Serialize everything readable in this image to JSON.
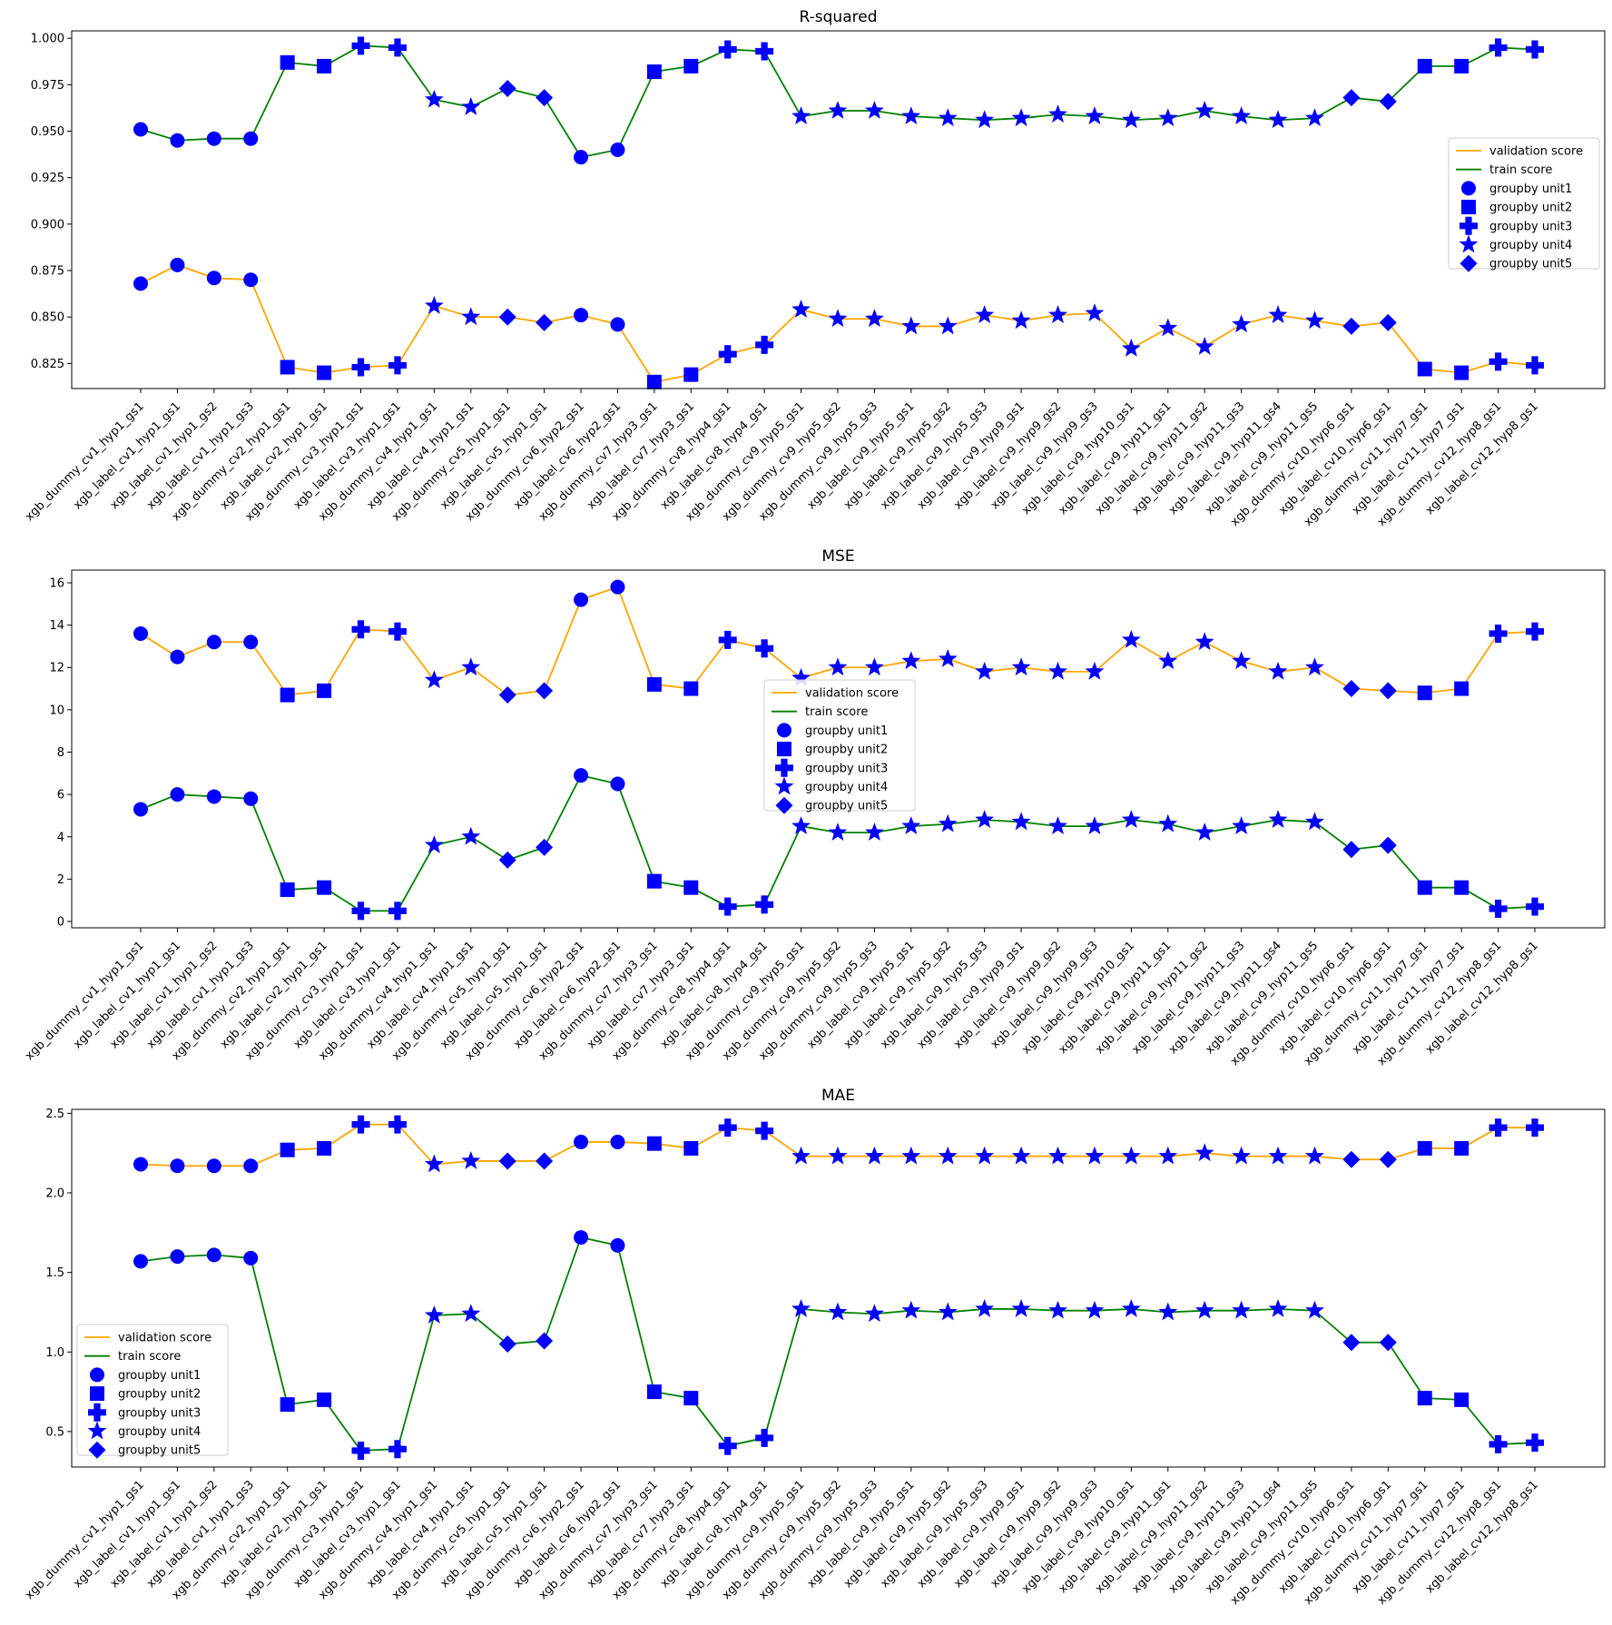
{
  "chart_data": [
    {
      "type": "line",
      "title": "R-squared",
      "categories": [
        "xgb_dummy_cv1_hyp1_gs1",
        "xgb_label_cv1_hyp1_gs1",
        "xgb_label_cv1_hyp1_gs2",
        "xgb_label_cv1_hyp1_gs3",
        "xgb_dummy_cv2_hyp1_gs1",
        "xgb_label_cv2_hyp1_gs1",
        "xgb_dummy_cv3_hyp1_gs1",
        "xgb_label_cv3_hyp1_gs1",
        "xgb_dummy_cv4_hyp1_gs1",
        "xgb_label_cv4_hyp1_gs1",
        "xgb_dummy_cv5_hyp1_gs1",
        "xgb_label_cv5_hyp1_gs1",
        "xgb_dummy_cv6_hyp2_gs1",
        "xgb_label_cv6_hyp2_gs1",
        "xgb_dummy_cv7_hyp3_gs1",
        "xgb_label_cv7_hyp3_gs1",
        "xgb_dummy_cv8_hyp4_gs1",
        "xgb_label_cv8_hyp4_gs1",
        "xgb_dummy_cv9_hyp5_gs1",
        "xgb_dummy_cv9_hyp5_gs2",
        "xgb_dummy_cv9_hyp5_gs3",
        "xgb_label_cv9_hyp5_gs1",
        "xgb_label_cv9_hyp5_gs2",
        "xgb_label_cv9_hyp5_gs3",
        "xgb_label_cv9_hyp9_gs1",
        "xgb_label_cv9_hyp9_gs2",
        "xgb_label_cv9_hyp9_gs3",
        "xgb_label_cv9_hyp10_gs1",
        "xgb_label_cv9_hyp11_gs1",
        "xgb_label_cv9_hyp11_gs2",
        "xgb_label_cv9_hyp11_gs3",
        "xgb_label_cv9_hyp11_gs4",
        "xgb_label_cv9_hyp11_gs5",
        "xgb_dummy_cv10_hyp6_gs1",
        "xgb_label_cv10_hyp6_gs1",
        "xgb_dummy_cv11_hyp7_gs1",
        "xgb_label_cv11_hyp7_gs1",
        "xgb_dummy_cv12_hyp8_gs1",
        "xgb_label_cv12_hyp8_gs1"
      ],
      "groups": [
        1,
        1,
        1,
        1,
        2,
        2,
        3,
        3,
        4,
        4,
        5,
        5,
        1,
        1,
        2,
        2,
        3,
        3,
        4,
        4,
        4,
        4,
        4,
        4,
        4,
        4,
        4,
        4,
        4,
        4,
        4,
        4,
        4,
        5,
        5,
        2,
        2,
        3,
        3
      ],
      "series": [
        {
          "name": "validation score",
          "color": "#ffa500",
          "values": [
            0.868,
            0.878,
            0.871,
            0.87,
            0.823,
            0.82,
            0.823,
            0.824,
            0.856,
            0.85,
            0.85,
            0.847,
            0.851,
            0.846,
            0.815,
            0.819,
            0.83,
            0.835,
            0.854,
            0.849,
            0.849,
            0.845,
            0.845,
            0.851,
            0.848,
            0.851,
            0.852,
            0.833,
            0.844,
            0.834,
            0.846,
            0.851,
            0.848,
            0.845,
            0.847,
            0.822,
            0.82,
            0.826,
            0.824
          ]
        },
        {
          "name": "train score",
          "color": "#008000",
          "values": [
            0.951,
            0.945,
            0.946,
            0.946,
            0.987,
            0.985,
            0.996,
            0.995,
            0.967,
            0.963,
            0.973,
            0.968,
            0.936,
            0.94,
            0.982,
            0.985,
            0.994,
            0.993,
            0.958,
            0.961,
            0.961,
            0.958,
            0.957,
            0.956,
            0.957,
            0.959,
            0.958,
            0.956,
            0.957,
            0.961,
            0.958,
            0.956,
            0.957,
            0.968,
            0.966,
            0.985,
            0.985,
            0.995,
            0.994
          ]
        }
      ],
      "ylim": [
        0.8115,
        1.004
      ],
      "yticks": [
        "0.825",
        "0.850",
        "0.875",
        "0.900",
        "0.925",
        "0.950",
        "0.975",
        "1.000"
      ],
      "legend": {
        "position": "center-right",
        "entries": [
          "validation score",
          "train score",
          "groupby unit1",
          "groupby unit2",
          "groupby unit3",
          "groupby unit4",
          "groupby unit5"
        ]
      }
    },
    {
      "type": "line",
      "title": "MSE",
      "categories": [
        "xgb_dummy_cv1_hyp1_gs1",
        "xgb_label_cv1_hyp1_gs1",
        "xgb_label_cv1_hyp1_gs2",
        "xgb_label_cv1_hyp1_gs3",
        "xgb_dummy_cv2_hyp1_gs1",
        "xgb_label_cv2_hyp1_gs1",
        "xgb_dummy_cv3_hyp1_gs1",
        "xgb_label_cv3_hyp1_gs1",
        "xgb_dummy_cv4_hyp1_gs1",
        "xgb_label_cv4_hyp1_gs1",
        "xgb_dummy_cv5_hyp1_gs1",
        "xgb_label_cv5_hyp1_gs1",
        "xgb_dummy_cv6_hyp2_gs1",
        "xgb_label_cv6_hyp2_gs1",
        "xgb_dummy_cv7_hyp3_gs1",
        "xgb_label_cv7_hyp3_gs1",
        "xgb_dummy_cv8_hyp4_gs1",
        "xgb_label_cv8_hyp4_gs1",
        "xgb_dummy_cv9_hyp5_gs1",
        "xgb_dummy_cv9_hyp5_gs2",
        "xgb_dummy_cv9_hyp5_gs3",
        "xgb_label_cv9_hyp5_gs1",
        "xgb_label_cv9_hyp5_gs2",
        "xgb_label_cv9_hyp5_gs3",
        "xgb_label_cv9_hyp9_gs1",
        "xgb_label_cv9_hyp9_gs2",
        "xgb_label_cv9_hyp9_gs3",
        "xgb_label_cv9_hyp10_gs1",
        "xgb_label_cv9_hyp11_gs1",
        "xgb_label_cv9_hyp11_gs2",
        "xgb_label_cv9_hyp11_gs3",
        "xgb_label_cv9_hyp11_gs4",
        "xgb_label_cv9_hyp11_gs5",
        "xgb_dummy_cv10_hyp6_gs1",
        "xgb_label_cv10_hyp6_gs1",
        "xgb_dummy_cv11_hyp7_gs1",
        "xgb_label_cv11_hyp7_gs1",
        "xgb_dummy_cv12_hyp8_gs1",
        "xgb_label_cv12_hyp8_gs1"
      ],
      "groups": [
        1,
        1,
        1,
        1,
        2,
        2,
        3,
        3,
        4,
        4,
        5,
        5,
        1,
        1,
        2,
        2,
        3,
        3,
        4,
        4,
        4,
        4,
        4,
        4,
        4,
        4,
        4,
        4,
        4,
        4,
        4,
        4,
        4,
        5,
        5,
        2,
        2,
        3,
        3
      ],
      "series": [
        {
          "name": "validation score",
          "color": "#ffa500",
          "values": [
            13.6,
            12.5,
            13.2,
            13.2,
            10.7,
            10.9,
            13.8,
            13.7,
            11.4,
            12.0,
            10.7,
            10.9,
            15.2,
            15.8,
            11.2,
            11.0,
            13.3,
            12.9,
            11.5,
            12.0,
            12.0,
            12.3,
            12.4,
            11.8,
            12.0,
            11.8,
            11.8,
            13.3,
            12.3,
            13.2,
            12.3,
            11.8,
            12.0,
            11.0,
            10.9,
            10.8,
            11.0,
            13.6,
            13.7
          ]
        },
        {
          "name": "train score",
          "color": "#008000",
          "values": [
            5.3,
            6.0,
            5.9,
            5.8,
            1.5,
            1.6,
            0.5,
            0.5,
            3.6,
            4.0,
            2.9,
            3.5,
            6.9,
            6.5,
            1.9,
            1.6,
            0.7,
            0.8,
            4.5,
            4.2,
            4.2,
            4.5,
            4.6,
            4.8,
            4.7,
            4.5,
            4.5,
            4.8,
            4.6,
            4.2,
            4.5,
            4.8,
            4.7,
            3.4,
            3.6,
            1.6,
            1.6,
            0.6,
            0.7
          ]
        }
      ],
      "ylim": [
        -0.3,
        16.6
      ],
      "yticks": [
        "0",
        "2",
        "4",
        "6",
        "8",
        "10",
        "12",
        "14",
        "16"
      ],
      "legend": {
        "position": "center",
        "entries": [
          "validation score",
          "train score",
          "groupby unit1",
          "groupby unit2",
          "groupby unit3",
          "groupby unit4",
          "groupby unit5"
        ]
      }
    },
    {
      "type": "line",
      "title": "MAE",
      "categories": [
        "xgb_dummy_cv1_hyp1_gs1",
        "xgb_label_cv1_hyp1_gs1",
        "xgb_label_cv1_hyp1_gs2",
        "xgb_label_cv1_hyp1_gs3",
        "xgb_dummy_cv2_hyp1_gs1",
        "xgb_label_cv2_hyp1_gs1",
        "xgb_dummy_cv3_hyp1_gs1",
        "xgb_label_cv3_hyp1_gs1",
        "xgb_dummy_cv4_hyp1_gs1",
        "xgb_label_cv4_hyp1_gs1",
        "xgb_dummy_cv5_hyp1_gs1",
        "xgb_label_cv5_hyp1_gs1",
        "xgb_dummy_cv6_hyp2_gs1",
        "xgb_label_cv6_hyp2_gs1",
        "xgb_dummy_cv7_hyp3_gs1",
        "xgb_label_cv7_hyp3_gs1",
        "xgb_dummy_cv8_hyp4_gs1",
        "xgb_label_cv8_hyp4_gs1",
        "xgb_dummy_cv9_hyp5_gs1",
        "xgb_dummy_cv9_hyp5_gs2",
        "xgb_dummy_cv9_hyp5_gs3",
        "xgb_label_cv9_hyp5_gs1",
        "xgb_label_cv9_hyp5_gs2",
        "xgb_label_cv9_hyp5_gs3",
        "xgb_label_cv9_hyp9_gs1",
        "xgb_label_cv9_hyp9_gs2",
        "xgb_label_cv9_hyp9_gs3",
        "xgb_label_cv9_hyp10_gs1",
        "xgb_label_cv9_hyp11_gs1",
        "xgb_label_cv9_hyp11_gs2",
        "xgb_label_cv9_hyp11_gs3",
        "xgb_label_cv9_hyp11_gs4",
        "xgb_label_cv9_hyp11_gs5",
        "xgb_dummy_cv10_hyp6_gs1",
        "xgb_label_cv10_hyp6_gs1",
        "xgb_dummy_cv11_hyp7_gs1",
        "xgb_label_cv11_hyp7_gs1",
        "xgb_dummy_cv12_hyp8_gs1",
        "xgb_label_cv12_hyp8_gs1"
      ],
      "groups": [
        1,
        1,
        1,
        1,
        2,
        2,
        3,
        3,
        4,
        4,
        5,
        5,
        1,
        1,
        2,
        2,
        3,
        3,
        4,
        4,
        4,
        4,
        4,
        4,
        4,
        4,
        4,
        4,
        4,
        4,
        4,
        4,
        4,
        5,
        5,
        2,
        2,
        3,
        3
      ],
      "series": [
        {
          "name": "validation score",
          "color": "#ffa500",
          "values": [
            2.18,
            2.17,
            2.17,
            2.17,
            2.27,
            2.28,
            2.43,
            2.43,
            2.18,
            2.2,
            2.2,
            2.2,
            2.32,
            2.32,
            2.31,
            2.28,
            2.41,
            2.39,
            2.23,
            2.23,
            2.23,
            2.23,
            2.23,
            2.23,
            2.23,
            2.23,
            2.23,
            2.23,
            2.23,
            2.25,
            2.23,
            2.23,
            2.23,
            2.21,
            2.21,
            2.28,
            2.28,
            2.41,
            2.41
          ]
        },
        {
          "name": "train score",
          "color": "#008000",
          "values": [
            1.57,
            1.6,
            1.61,
            1.59,
            0.67,
            0.7,
            0.38,
            0.39,
            1.23,
            1.24,
            1.05,
            1.07,
            1.72,
            1.67,
            0.75,
            0.71,
            0.41,
            0.46,
            1.27,
            1.25,
            1.24,
            1.26,
            1.25,
            1.27,
            1.27,
            1.26,
            1.26,
            1.27,
            1.25,
            1.26,
            1.26,
            1.27,
            1.26,
            1.06,
            1.06,
            0.71,
            0.7,
            0.42,
            0.43
          ]
        }
      ],
      "ylim": [
        0.277,
        2.525
      ],
      "yticks": [
        "0.5",
        "1.0",
        "1.5",
        "2.0",
        "2.5"
      ],
      "legend": {
        "position": "lower-left",
        "entries": [
          "validation score",
          "train score",
          "groupby unit1",
          "groupby unit2",
          "groupby unit3",
          "groupby unit4",
          "groupby unit5"
        ]
      }
    }
  ]
}
